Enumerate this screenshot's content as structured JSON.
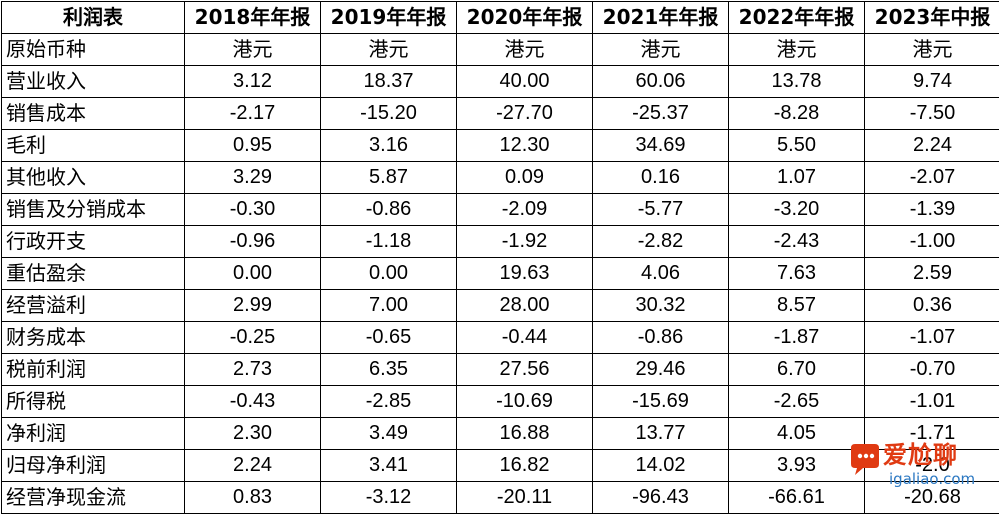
{
  "table": {
    "corner": "利润表",
    "years": [
      "2018年年报",
      "2019年年报",
      "2020年年报",
      "2021年年报",
      "2022年年报",
      "2023年中报"
    ],
    "currency_label": "原始币种",
    "currency": [
      "港元",
      "港元",
      "港元",
      "港元",
      "港元",
      "港元"
    ],
    "rows": [
      {
        "label": "营业收入",
        "values": [
          "3.12",
          "18.37",
          "40.00",
          "60.06",
          "13.78",
          "9.74"
        ]
      },
      {
        "label": "销售成本",
        "values": [
          "-2.17",
          "-15.20",
          "-27.70",
          "-25.37",
          "-8.28",
          "-7.50"
        ]
      },
      {
        "label": "毛利",
        "values": [
          "0.95",
          "3.16",
          "12.30",
          "34.69",
          "5.50",
          "2.24"
        ]
      },
      {
        "label": "其他收入",
        "values": [
          "3.29",
          "5.87",
          "0.09",
          "0.16",
          "1.07",
          "-2.07"
        ]
      },
      {
        "label": "销售及分销成本",
        "values": [
          "-0.30",
          "-0.86",
          "-2.09",
          "-5.77",
          "-3.20",
          "-1.39"
        ]
      },
      {
        "label": "行政开支",
        "values": [
          "-0.96",
          "-1.18",
          "-1.92",
          "-2.82",
          "-2.43",
          "-1.00"
        ]
      },
      {
        "label": "重估盈余",
        "values": [
          "0.00",
          "0.00",
          "19.63",
          "4.06",
          "7.63",
          "2.59"
        ]
      },
      {
        "label": "经营溢利",
        "values": [
          "2.99",
          "7.00",
          "28.00",
          "30.32",
          "8.57",
          "0.36"
        ]
      },
      {
        "label": "财务成本",
        "values": [
          "-0.25",
          "-0.65",
          "-0.44",
          "-0.86",
          "-1.87",
          "-1.07"
        ]
      },
      {
        "label": "税前利润",
        "values": [
          "2.73",
          "6.35",
          "27.56",
          "29.46",
          "6.70",
          "-0.70"
        ]
      },
      {
        "label": "所得税",
        "values": [
          "-0.43",
          "-2.85",
          "-10.69",
          "-15.69",
          "-2.65",
          "-1.01"
        ]
      },
      {
        "label": "净利润",
        "values": [
          "2.30",
          "3.49",
          "16.88",
          "13.77",
          "4.05",
          "-1.71"
        ]
      },
      {
        "label": "归母净利润",
        "values": [
          "2.24",
          "3.41",
          "16.82",
          "14.02",
          "3.93",
          "-2.0"
        ]
      },
      {
        "label": "经营净现金流",
        "values": [
          "0.83",
          "-3.12",
          "-20.11",
          "-96.43",
          "-66.61",
          "-20.68"
        ]
      }
    ]
  },
  "watermark": {
    "brand_cn": "爱尬聊",
    "brand_url": "igaliao.com",
    "icon": "speech-bubble-icon",
    "colors": {
      "orange": "#e03a12",
      "blue": "#2b78c2"
    }
  }
}
